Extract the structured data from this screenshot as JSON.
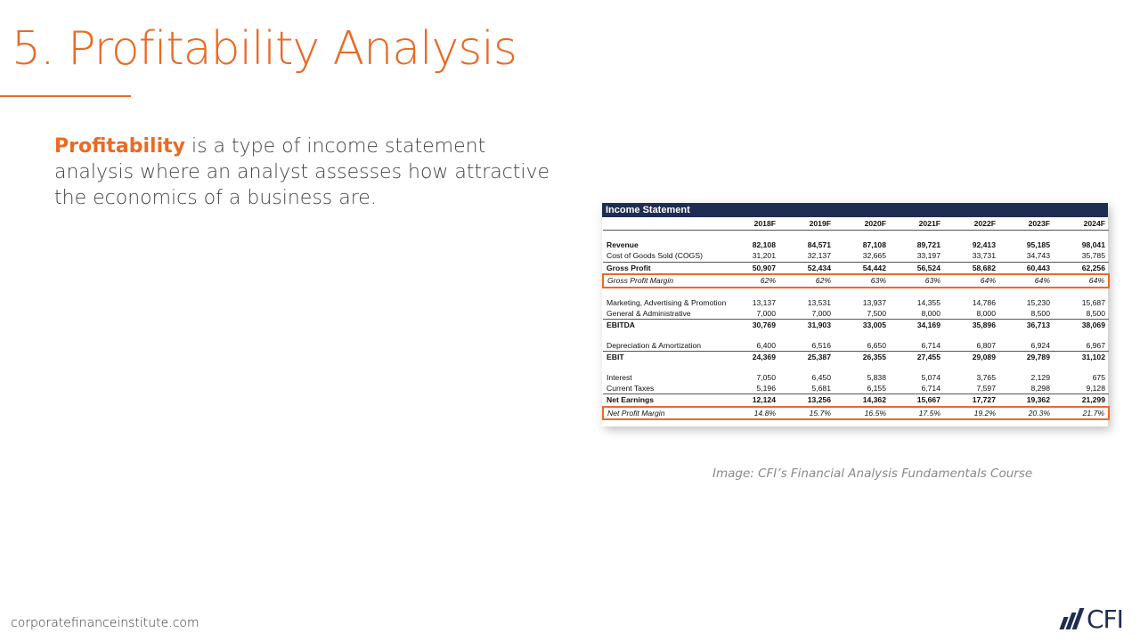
{
  "slide": {
    "title": "5. Profitability Analysis",
    "body_term": "Profitability",
    "body_rest": " is a type of income statement analysis where an analyst assesses how attractive the economics of a business are.",
    "caption": "Image: CFI’s Financial Analysis Fundamentals Course",
    "footer_url": "corporatefinanceinstitute.com",
    "logo_text": "CFI",
    "accent_color": "#ea6a24",
    "navy_color": "#1f2d52"
  },
  "income_statement": {
    "title": "Income Statement",
    "years": [
      "2018F",
      "2019F",
      "2020F",
      "2021F",
      "2022F",
      "2023F",
      "2024F"
    ],
    "rows": [
      {
        "label": "Revenue",
        "values": [
          "82,108",
          "84,571",
          "87,108",
          "89,721",
          "92,413",
          "95,185",
          "98,041"
        ]
      },
      {
        "label": "Cost of Goods Sold (COGS)",
        "values": [
          "31,201",
          "32,137",
          "32,665",
          "33,197",
          "33,731",
          "34,743",
          "35,785"
        ]
      },
      {
        "label": "Gross Profit",
        "values": [
          "50,907",
          "52,434",
          "54,442",
          "56,524",
          "58,682",
          "60,443",
          "62,256"
        ]
      },
      {
        "label": "Gross Profit Margin",
        "values": [
          "62%",
          "62%",
          "63%",
          "63%",
          "64%",
          "64%",
          "64%"
        ]
      },
      {
        "label": "Marketing, Advertising & Promotion",
        "values": [
          "13,137",
          "13,531",
          "13,937",
          "14,355",
          "14,786",
          "15,230",
          "15,687"
        ]
      },
      {
        "label": "General & Administrative",
        "values": [
          "7,000",
          "7,000",
          "7,500",
          "8,000",
          "8,000",
          "8,500",
          "8,500"
        ]
      },
      {
        "label": "EBITDA",
        "values": [
          "30,769",
          "31,903",
          "33,005",
          "34,169",
          "35,896",
          "36,713",
          "38,069"
        ]
      },
      {
        "label": "Depreciation & Amortization",
        "values": [
          "6,400",
          "6,516",
          "6,650",
          "6,714",
          "6,807",
          "6,924",
          "6,967"
        ]
      },
      {
        "label": "EBIT",
        "values": [
          "24,369",
          "25,387",
          "26,355",
          "27,455",
          "29,089",
          "29,789",
          "31,102"
        ]
      },
      {
        "label": "Interest",
        "values": [
          "7,050",
          "6,450",
          "5,838",
          "5,074",
          "3,765",
          "2,129",
          "675"
        ]
      },
      {
        "label": "Current Taxes",
        "values": [
          "5,196",
          "5,681",
          "6,155",
          "6,714",
          "7,597",
          "8,298",
          "9,128"
        ]
      },
      {
        "label": "Net Earnings",
        "values": [
          "12,124",
          "13,256",
          "14,362",
          "15,667",
          "17,727",
          "19,362",
          "21,299"
        ]
      },
      {
        "label": "Net Profit Margin",
        "values": [
          "14.8%",
          "15.7%",
          "16.5%",
          "17.5%",
          "19.2%",
          "20.3%",
          "21.7%"
        ]
      }
    ]
  }
}
